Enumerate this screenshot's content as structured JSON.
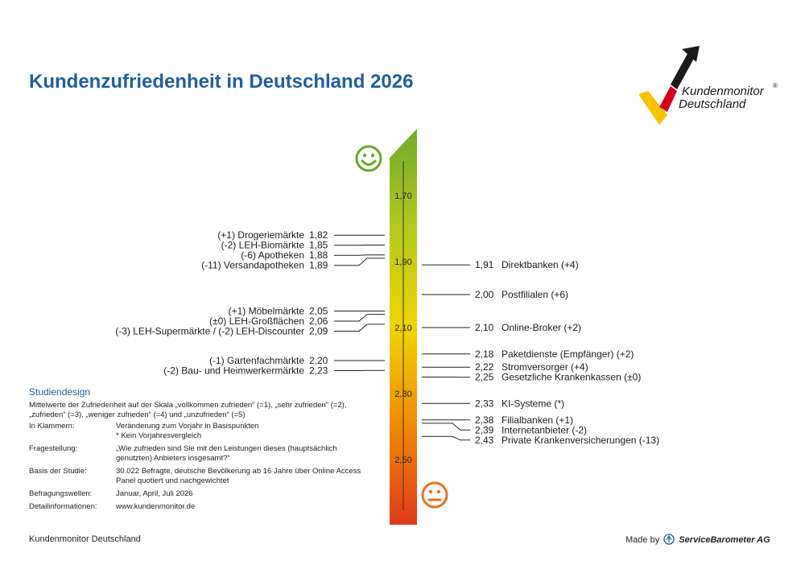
{
  "title": "Kundenzufriedenheit in Deutschland 2026",
  "logo": {
    "line1": "Kundenmonitor",
    "registered": "®",
    "line2": "Deutschland",
    "colors": [
      "#1a1a1a",
      "#d2001a",
      "#f5c400"
    ]
  },
  "chart_data": {
    "type": "scale",
    "scale_ticks": [
      "1,70",
      "1,90",
      "2,10",
      "2,30",
      "2,50"
    ],
    "scale_range": [
      1.6,
      2.6
    ],
    "gradient_colors": [
      "#6faa2e",
      "#b4c81e",
      "#f0d400",
      "#f08a00",
      "#e03a1e"
    ],
    "top_icon": "happy-smiley-icon",
    "bottom_icon": "neutral-smiley-icon",
    "left": [
      {
        "label": "(+1) Drogeriemärkte",
        "value": 1.82,
        "value_text": "1,82"
      },
      {
        "label": "(-2) LEH-Biomärkte",
        "value": 1.85,
        "value_text": "1,85"
      },
      {
        "label": "(-6) Apotheken",
        "value": 1.88,
        "value_text": "1,88"
      },
      {
        "label": "(-11) Versandapotheken",
        "value": 1.89,
        "value_text": "1,89"
      },
      {
        "label": "(+1) Möbelmärkte",
        "value": 2.05,
        "value_text": "2,05"
      },
      {
        "label": "(±0) LEH-Großflächen",
        "value": 2.06,
        "value_text": "2,06"
      },
      {
        "label": "(-3) LEH-Supermärkte / (-2) LEH-Discounter",
        "value": 2.09,
        "value_text": "2,09"
      },
      {
        "label": "(-1) Gartenfachmärkte",
        "value": 2.2,
        "value_text": "2,20"
      },
      {
        "label": "(-2) Bau- und Heimwerkermärkte",
        "value": 2.23,
        "value_text": "2,23"
      }
    ],
    "right": [
      {
        "label": "Direktbanken (+4)",
        "value": 1.91,
        "value_text": "1,91"
      },
      {
        "label": "Postfilialen (+6)",
        "value": 2.0,
        "value_text": "2,00"
      },
      {
        "label": "Online-Broker (+2)",
        "value": 2.1,
        "value_text": "2,10"
      },
      {
        "label": "Paketdienste (Empfänger) (+2)",
        "value": 2.18,
        "value_text": "2,18"
      },
      {
        "label": "Stromversorger (+4)",
        "value": 2.22,
        "value_text": "2,22"
      },
      {
        "label": "Gesetzliche Krankenkassen (±0)",
        "value": 2.25,
        "value_text": "2,25"
      },
      {
        "label": "KI-Systeme (*)",
        "value": 2.33,
        "value_text": "2,33"
      },
      {
        "label": "Filialbanken (+1)",
        "value": 2.38,
        "value_text": "2,38"
      },
      {
        "label": "Internetanbieter (-2)",
        "value": 2.39,
        "value_text": "2,39"
      },
      {
        "label": "Private Krankenversicherungen (-13)",
        "value": 2.43,
        "value_text": "2,43"
      }
    ]
  },
  "study": {
    "heading": "Studiendesign",
    "intro": "Mittelwerte der Zufriedenheit auf der Skala „vollkommen zufrieden“ (=1), „sehr zufrieden“ (=2), „zufrieden“ (=3), „weniger zufrieden“ (=4) und „unzufrieden“ (=5)",
    "rows": [
      {
        "key": "In Klammern:",
        "value": "Veränderung zum Vorjahr in Basispunkten",
        "extra": "* Kein Vorjahresvergleich"
      },
      {
        "key": "Fragestellung:",
        "value": "„Wie zufrieden sind Sie mit den Leistungen dieses (hauptsächlich genutzten) Anbieters insgesamt?“",
        "extra": ""
      },
      {
        "key": "Basis der Studie:",
        "value": "30.022 Befragte, deutsche Bevölkerung ab 16 Jahre über Online Access Panel quotiert und nachgewichtet",
        "extra": ""
      },
      {
        "key": "Befragungswellen:",
        "value": "Januar, April, Juli 2026",
        "extra": ""
      },
      {
        "key": "Detailinformationen:",
        "value": "www.kundenmonitor.de",
        "extra": ""
      }
    ]
  },
  "footer": {
    "left": "Kundenmonitor Deutschland",
    "made_by": "Made by",
    "brand": "ServiceBarometer AG"
  }
}
